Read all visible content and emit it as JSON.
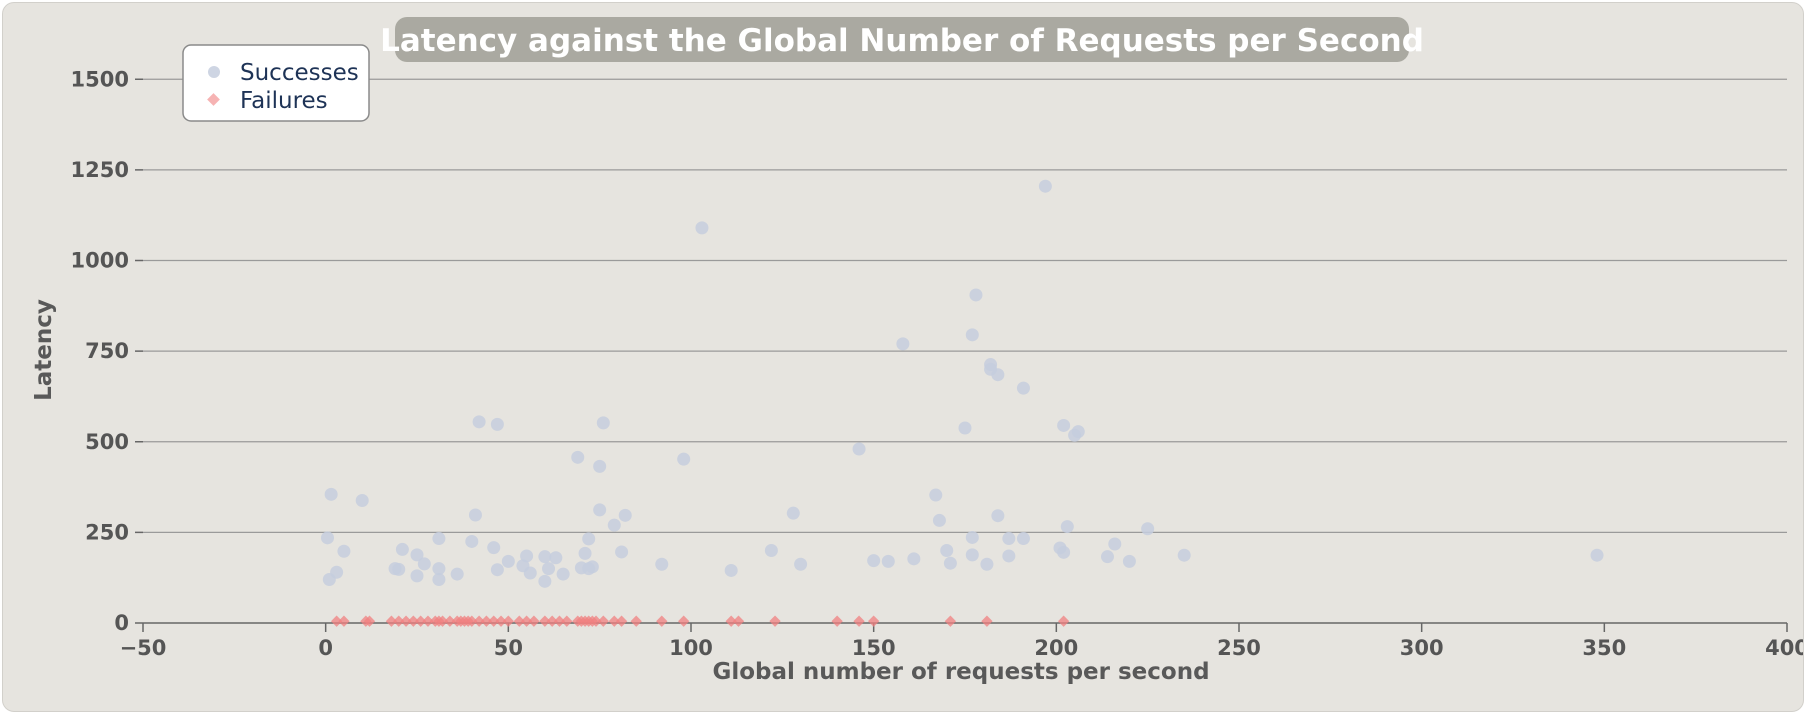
{
  "chart_data": {
    "type": "scatter",
    "title": "Latency against the Global Number of Requests per Second",
    "xlabel": "Global number of requests per second",
    "ylabel": "Latency",
    "xlim": [
      -50,
      400
    ],
    "ylim": [
      0,
      1600
    ],
    "xticks": [
      "−50",
      "0",
      "50",
      "100",
      "150",
      "200",
      "250",
      "300",
      "350",
      "400"
    ],
    "xtick_values": [
      -50,
      0,
      50,
      100,
      150,
      200,
      250,
      300,
      350,
      400
    ],
    "yticks": [
      "0",
      "250",
      "500",
      "750",
      "1000",
      "1250",
      "1500"
    ],
    "ytick_values": [
      0,
      250,
      500,
      750,
      1000,
      1250,
      1500
    ],
    "grid": true,
    "legend_position": "top-left",
    "series": [
      {
        "name": "Successes",
        "color": "#c6cede",
        "marker": "circle",
        "points": [
          [
            0.5,
            235
          ],
          [
            1,
            120
          ],
          [
            1.5,
            355
          ],
          [
            3,
            140
          ],
          [
            5,
            198
          ],
          [
            10,
            338
          ],
          [
            19,
            150
          ],
          [
            20,
            148
          ],
          [
            21,
            203
          ],
          [
            25,
            130
          ],
          [
            25,
            188
          ],
          [
            27,
            163
          ],
          [
            31,
            120
          ],
          [
            31,
            150
          ],
          [
            31,
            233
          ],
          [
            36,
            135
          ],
          [
            40,
            225
          ],
          [
            41,
            298
          ],
          [
            42,
            555
          ],
          [
            46,
            208
          ],
          [
            47,
            548
          ],
          [
            47,
            147
          ],
          [
            50,
            170
          ],
          [
            54,
            158
          ],
          [
            55,
            185
          ],
          [
            56,
            138
          ],
          [
            60,
            115
          ],
          [
            60,
            183
          ],
          [
            61,
            150
          ],
          [
            63,
            180
          ],
          [
            65,
            135
          ],
          [
            69,
            457
          ],
          [
            70,
            152
          ],
          [
            71,
            192
          ],
          [
            72,
            150
          ],
          [
            72,
            232
          ],
          [
            73,
            155
          ],
          [
            75,
            432
          ],
          [
            75,
            312
          ],
          [
            76,
            552
          ],
          [
            79,
            270
          ],
          [
            81,
            196
          ],
          [
            82,
            297
          ],
          [
            92,
            162
          ],
          [
            98,
            452
          ],
          [
            103,
            1090
          ],
          [
            111,
            145
          ],
          [
            122,
            200
          ],
          [
            128,
            303
          ],
          [
            130,
            162
          ],
          [
            146,
            480
          ],
          [
            150,
            172
          ],
          [
            154,
            170
          ],
          [
            158,
            770
          ],
          [
            161,
            177
          ],
          [
            167,
            353
          ],
          [
            168,
            283
          ],
          [
            170,
            200
          ],
          [
            171,
            165
          ],
          [
            175,
            538
          ],
          [
            177,
            795
          ],
          [
            177,
            236
          ],
          [
            177,
            188
          ],
          [
            178,
            905
          ],
          [
            181,
            162
          ],
          [
            182,
            713
          ],
          [
            182,
            700
          ],
          [
            184,
            685
          ],
          [
            184,
            296
          ],
          [
            187,
            185
          ],
          [
            187,
            233
          ],
          [
            191,
            648
          ],
          [
            191,
            233
          ],
          [
            197,
            1205
          ],
          [
            201,
            207
          ],
          [
            202,
            545
          ],
          [
            202,
            195
          ],
          [
            203,
            266
          ],
          [
            205,
            518
          ],
          [
            206,
            528
          ],
          [
            214,
            183
          ],
          [
            216,
            218
          ],
          [
            220,
            170
          ],
          [
            225,
            260
          ],
          [
            235,
            187
          ],
          [
            348,
            187
          ]
        ]
      },
      {
        "name": "Failures",
        "color": "#f08080",
        "marker": "diamond",
        "points": [
          [
            3,
            5
          ],
          [
            5,
            5
          ],
          [
            11,
            5
          ],
          [
            12,
            5
          ],
          [
            18,
            5
          ],
          [
            20,
            5
          ],
          [
            22,
            5
          ],
          [
            24,
            5
          ],
          [
            26,
            5
          ],
          [
            28,
            5
          ],
          [
            30,
            5
          ],
          [
            31,
            5
          ],
          [
            32,
            5
          ],
          [
            34,
            5
          ],
          [
            36,
            5
          ],
          [
            37,
            5
          ],
          [
            38,
            5
          ],
          [
            39,
            5
          ],
          [
            40,
            5
          ],
          [
            42,
            5
          ],
          [
            44,
            5
          ],
          [
            46,
            5
          ],
          [
            48,
            5
          ],
          [
            50,
            5
          ],
          [
            53,
            5
          ],
          [
            55,
            5
          ],
          [
            57,
            5
          ],
          [
            60,
            5
          ],
          [
            62,
            5
          ],
          [
            64,
            5
          ],
          [
            66,
            5
          ],
          [
            69,
            5
          ],
          [
            70,
            5
          ],
          [
            71,
            5
          ],
          [
            72,
            5
          ],
          [
            73,
            5
          ],
          [
            74,
            5
          ],
          [
            76,
            5
          ],
          [
            79,
            5
          ],
          [
            81,
            5
          ],
          [
            85,
            5
          ],
          [
            92,
            5
          ],
          [
            98,
            5
          ],
          [
            111,
            5
          ],
          [
            113,
            5
          ],
          [
            123,
            5
          ],
          [
            140,
            5
          ],
          [
            146,
            5
          ],
          [
            150,
            5
          ],
          [
            171,
            5
          ],
          [
            181,
            5
          ],
          [
            202,
            5
          ]
        ]
      }
    ]
  }
}
